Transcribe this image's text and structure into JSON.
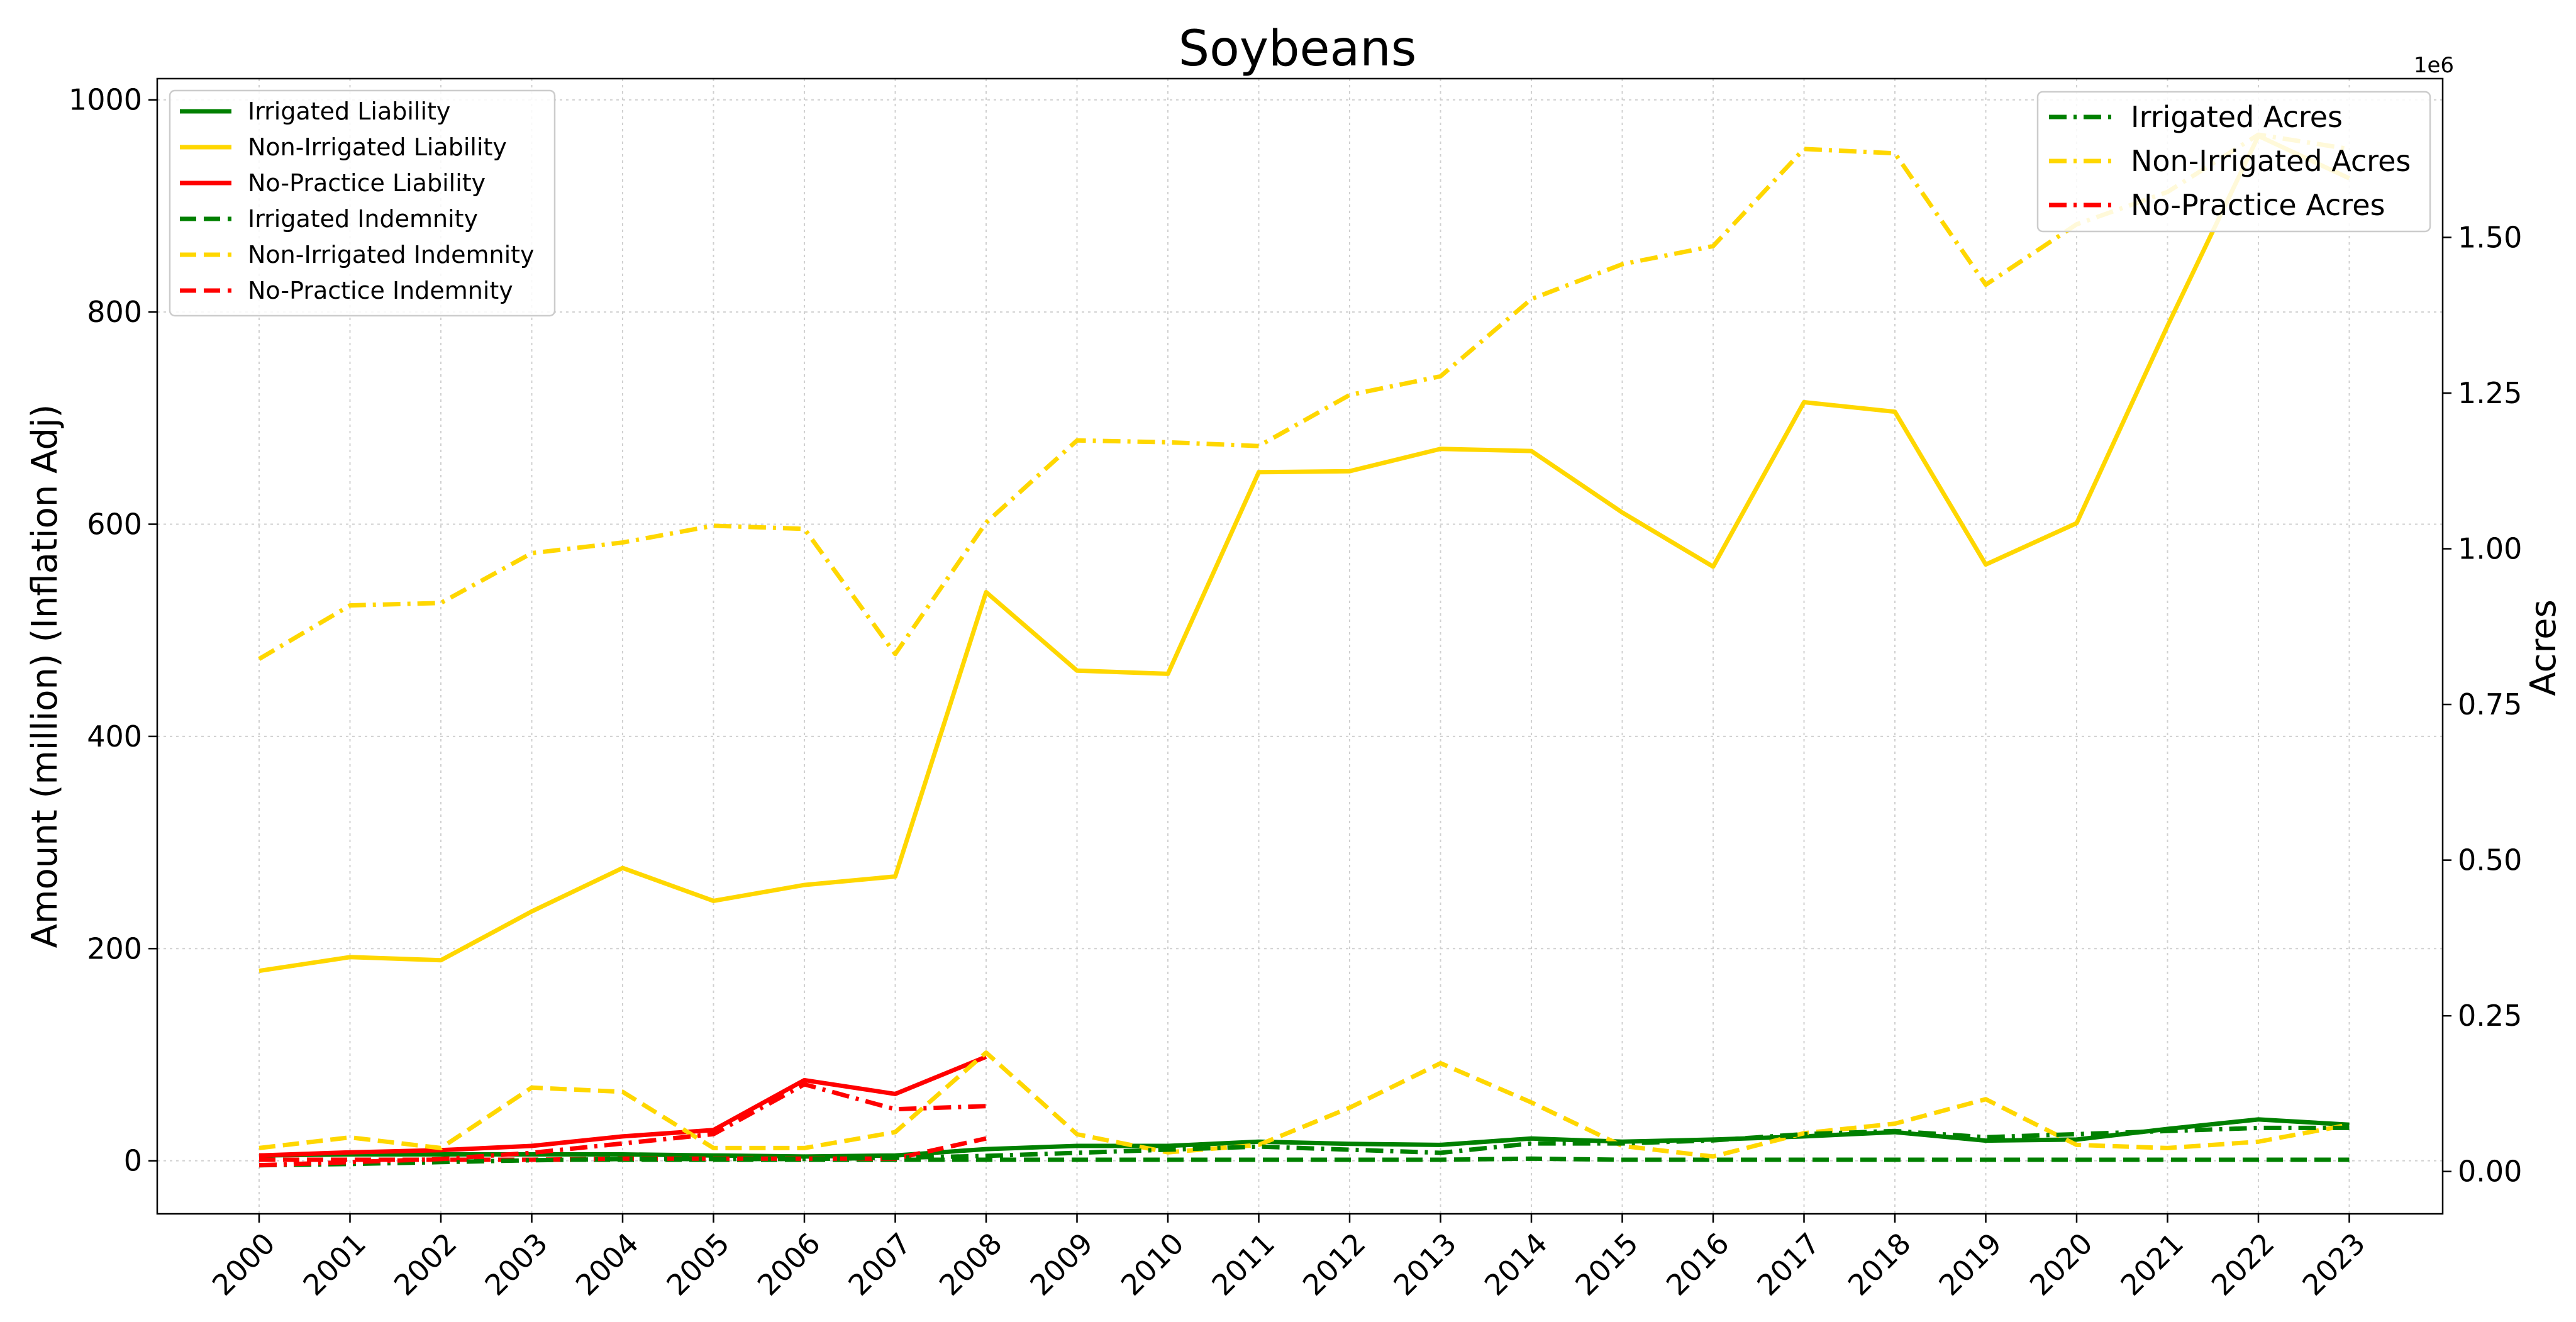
{
  "chart_data": {
    "type": "line",
    "title": "Soybeans",
    "ylabel": "Amount (million) (Inflation Adj)",
    "ylabel_right": "Acres",
    "right_axis_offset_label": "1e6",
    "grid": true,
    "x": [
      2000,
      2001,
      2002,
      2003,
      2004,
      2005,
      2006,
      2007,
      2008,
      2009,
      2010,
      2011,
      2012,
      2013,
      2014,
      2015,
      2016,
      2017,
      2018,
      2019,
      2020,
      2021,
      2022,
      2023
    ],
    "x_tick_labels": [
      "2000",
      "2001",
      "2002",
      "2003",
      "2004",
      "2005",
      "2006",
      "2007",
      "2008",
      "2009",
      "2010",
      "2011",
      "2012",
      "2013",
      "2014",
      "2015",
      "2016",
      "2017",
      "2018",
      "2019",
      "2020",
      "2021",
      "2022",
      "2023"
    ],
    "ylim": [
      -50,
      1020
    ],
    "y_ticks": [
      0,
      200,
      400,
      600,
      800,
      1000
    ],
    "y_tick_labels": [
      "0",
      "200",
      "400",
      "600",
      "800",
      "1000"
    ],
    "ylim_right": [
      -68000,
      1755000
    ],
    "y_ticks_right": [
      0,
      250000,
      500000,
      750000,
      1000000,
      1250000,
      1500000
    ],
    "y_tick_labels_right": [
      "0.00",
      "0.25",
      "0.50",
      "0.75",
      "1.00",
      "1.25",
      "1.50"
    ],
    "legend_left_placement": "upper left",
    "legend_right_placement": "upper right",
    "series": [
      {
        "name": "Irrigated Liability",
        "axis": "left",
        "color": "#008000",
        "dash": "solid",
        "values": [
          5,
          6,
          6,
          6,
          6,
          5,
          4,
          5,
          11,
          14,
          14,
          18,
          16,
          15,
          21,
          18,
          20,
          23,
          27,
          19,
          20,
          30,
          39,
          34
        ]
      },
      {
        "name": "Non-Irrigated Liability",
        "axis": "left",
        "color": "#FFD700",
        "dash": "solid",
        "values": [
          179,
          192,
          189,
          235,
          276,
          245,
          260,
          268,
          536,
          462,
          459,
          649,
          650,
          671,
          669,
          611,
          560,
          715,
          706,
          562,
          601,
          787,
          966,
          926
        ]
      },
      {
        "name": "No-Practice Liability",
        "axis": "left",
        "color": "#FF0000",
        "dash": "solid",
        "values": [
          5,
          8,
          10,
          14,
          23,
          29,
          76,
          63,
          98,
          null,
          null,
          null,
          null,
          null,
          null,
          null,
          null,
          null,
          null,
          null,
          null,
          null,
          null,
          null
        ]
      },
      {
        "name": "Irrigated Indemnity",
        "axis": "left",
        "color": "#008000",
        "dash": "dashed",
        "values": [
          1,
          1,
          1,
          1,
          1,
          1,
          1,
          1,
          1,
          1,
          1,
          1,
          1,
          1,
          2,
          1,
          1,
          1,
          1,
          1,
          1,
          1,
          1,
          1
        ]
      },
      {
        "name": "Non-Irrigated Indemnity",
        "axis": "left",
        "color": "#FFD700",
        "dash": "dashed",
        "values": [
          12,
          22,
          12,
          69,
          65,
          12,
          12,
          27,
          102,
          25,
          8,
          15,
          50,
          92,
          55,
          14,
          4,
          26,
          35,
          58,
          15,
          12,
          18,
          34
        ]
      },
      {
        "name": "No-Practice Indemnity",
        "axis": "left",
        "color": "#FF0000",
        "dash": "dashed",
        "values": [
          1,
          1,
          1,
          1,
          2,
          2,
          2,
          2,
          21,
          null,
          null,
          null,
          null,
          null,
          null,
          null,
          null,
          null,
          null,
          null,
          null,
          null,
          null,
          null
        ]
      },
      {
        "name": "Irrigated Acres",
        "axis": "right",
        "color": "#008000",
        "dash": "dashdot",
        "values": [
          10000,
          12000,
          15000,
          18000,
          20000,
          20000,
          20000,
          22000,
          25000,
          30000,
          35000,
          40000,
          35000,
          30000,
          45000,
          45000,
          50000,
          60000,
          65000,
          55000,
          60000,
          65000,
          70000,
          70000
        ]
      },
      {
        "name": "Non-Irrigated Acres",
        "axis": "right",
        "color": "#FFD700",
        "dash": "dashdot",
        "values": [
          823000,
          909000,
          913000,
          993000,
          1010000,
          1037000,
          1032000,
          831000,
          1042000,
          1174000,
          1171000,
          1165000,
          1247000,
          1277000,
          1401000,
          1457000,
          1486000,
          1642000,
          1635000,
          1424000,
          1521000,
          1573000,
          1665000,
          1642000
        ]
      },
      {
        "name": "No-Practice Acres",
        "axis": "right",
        "color": "#FF0000",
        "dash": "dashdot",
        "values": [
          10000,
          15000,
          20000,
          30000,
          45000,
          60000,
          140000,
          100000,
          105000,
          null,
          null,
          null,
          null,
          null,
          null,
          null,
          null,
          null,
          null,
          null,
          null,
          null,
          null,
          null
        ]
      }
    ]
  }
}
